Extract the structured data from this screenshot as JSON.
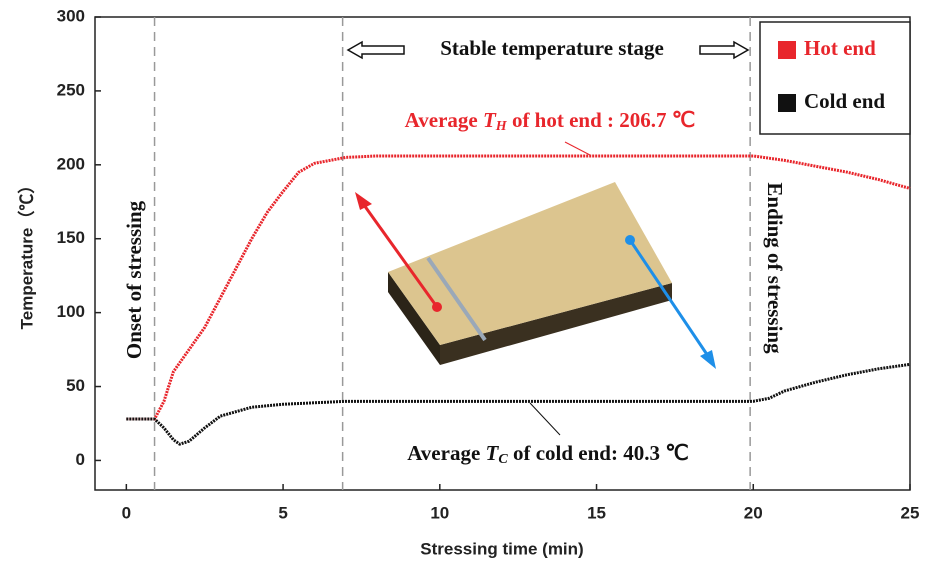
{
  "chart_data": {
    "type": "line",
    "x_label": "Stressing time (min)",
    "y_label": "Temperature（℃）",
    "xlim": [
      -1,
      25
    ],
    "ylim": [
      -20,
      300
    ],
    "xticks": [
      0,
      5,
      10,
      15,
      20,
      25
    ],
    "yticks": [
      0,
      50,
      100,
      150,
      200,
      250,
      300
    ],
    "legend": "upper right",
    "vlines": [
      0.9,
      6.9,
      19.9
    ],
    "series": [
      {
        "name": "Hot end",
        "color": "#e8262c",
        "x": [
          0,
          0.5,
          0.9,
          1.2,
          1.5,
          2,
          2.5,
          3,
          3.5,
          4,
          4.5,
          5,
          5.5,
          6,
          6.5,
          7,
          8,
          10,
          12,
          14,
          16,
          18,
          20,
          21,
          22,
          23,
          24,
          25
        ],
        "values": [
          28,
          28,
          28,
          40,
          60,
          75,
          90,
          110,
          130,
          150,
          168,
          182,
          195,
          201,
          203,
          205,
          206,
          206,
          206,
          206,
          206,
          206,
          206,
          203,
          199,
          195,
          190,
          184
        ]
      },
      {
        "name": "Cold end",
        "color": "#111111",
        "x": [
          0,
          0.9,
          1.2,
          1.5,
          1.7,
          2,
          2.5,
          3,
          4,
          5,
          6,
          7,
          10,
          15,
          20,
          20.5,
          21,
          22,
          23,
          24,
          25
        ],
        "values": [
          28,
          28,
          22,
          14,
          11,
          13,
          22,
          30,
          36,
          38,
          39,
          40,
          40,
          40,
          40,
          42,
          47,
          53,
          58,
          62,
          65
        ]
      }
    ],
    "annotations": {
      "stage": "Stable temperature stage",
      "onset": "Onset of stressing",
      "ending": "Ending of stressing",
      "hot_average": [
        "Average ",
        "T",
        "H",
        " of hot end : 206.7 ℃"
      ],
      "cold_average": [
        "Average ",
        "T",
        "C",
        " of cold end: 40.3 ℃"
      ]
    }
  }
}
